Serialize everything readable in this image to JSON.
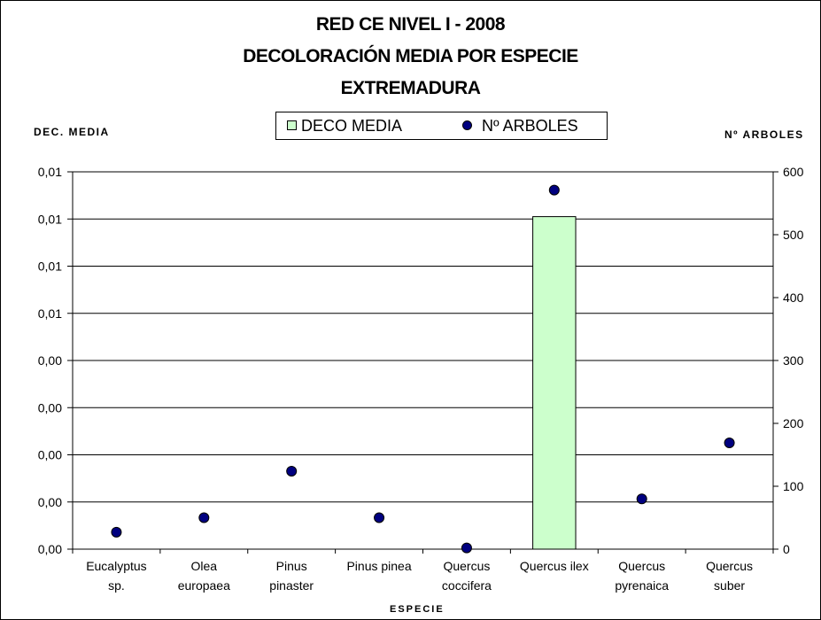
{
  "chart_data": {
    "type": "bar",
    "title": [
      "RED CE NIVEL I - 2008",
      "DECOLORACIÓN MEDIA POR ESPECIE",
      "EXTREMADURA"
    ],
    "xlabel": "ESPECIE",
    "ylabel_left": "DEC. MEDIA",
    "ylabel_right": "Nº ARBOLES",
    "categories": [
      [
        "Eucalyptus",
        "sp."
      ],
      [
        "Olea",
        "europaea"
      ],
      [
        "Pinus",
        "pinaster"
      ],
      [
        "Pinus pinea"
      ],
      [
        "Quercus",
        "coccifera"
      ],
      [
        "Quercus ilex"
      ],
      [
        "Quercus",
        "pyrenaica"
      ],
      [
        "Quercus",
        "suber"
      ]
    ],
    "left_axis": {
      "ylim": [
        0,
        0.016
      ],
      "ticks": [
        0,
        0.002,
        0.004,
        0.006,
        0.008,
        0.01,
        0.012,
        0.014,
        0.016
      ],
      "tick_labels": [
        "0,00",
        "0,00",
        "0,00",
        "0,00",
        "0,00",
        "0,01",
        "0,01",
        "0,01",
        "0,01"
      ]
    },
    "right_axis": {
      "ylim": [
        0,
        600
      ],
      "ticks": [
        0,
        100,
        200,
        300,
        400,
        500,
        600
      ],
      "tick_labels": [
        "0",
        "100",
        "200",
        "300",
        "400",
        "500",
        "600"
      ]
    },
    "series": [
      {
        "name": "DECO MEDIA",
        "type": "bar",
        "axis": "left",
        "color": "#ccffcc",
        "values": [
          0,
          0,
          0,
          0,
          0,
          0.0141,
          0,
          0
        ]
      },
      {
        "name": "Nº ARBOLES",
        "type": "scatter",
        "axis": "right",
        "color": "#000080",
        "values": [
          27,
          50,
          124,
          50,
          2,
          571,
          80,
          169
        ]
      }
    ],
    "grid": true,
    "legend_position": "top-center"
  }
}
